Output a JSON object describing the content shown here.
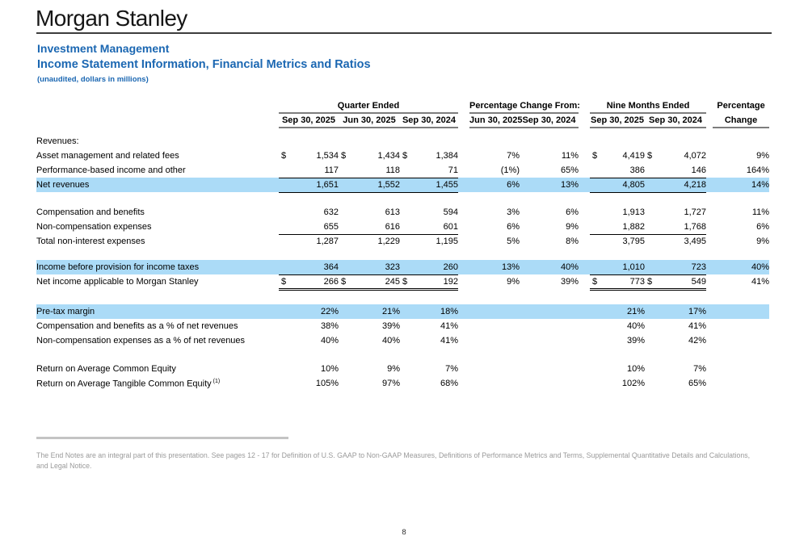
{
  "brand": {
    "logo": "Morgan Stanley"
  },
  "header": {
    "division": "Investment Management",
    "title": "Income Statement Information, Financial Metrics and Ratios",
    "subtitle": "(unaudited, dollars in millions)"
  },
  "colors": {
    "highlight_blue": "#abdbf7",
    "heading_blue": "#1b67b2",
    "footnote_gray": "#9a9a9a"
  },
  "table": {
    "groups": [
      {
        "label": "Quarter Ended",
        "span": 3
      },
      {
        "label": "Percentage Change From:",
        "span": 2
      },
      {
        "label": "Nine Months Ended",
        "span": 2
      },
      {
        "label": "Percentage",
        "span": 1
      }
    ],
    "columns": [
      "Sep 30, 2025",
      "Jun 30, 2025",
      "Sep 30, 2024",
      "Jun 30, 2025",
      "Sep 30, 2024",
      "Sep 30, 2025",
      "Sep 30, 2024",
      "Change"
    ],
    "rows": [
      {
        "spacer": 8
      },
      {
        "label": "Revenues:",
        "indent": 0
      },
      {
        "label": "Asset management and related fees",
        "indent": 1,
        "dollars": true,
        "values": [
          "1,534",
          "1,434",
          "1,384",
          "7%",
          "11%",
          "4,419",
          "4,072",
          "9%"
        ]
      },
      {
        "label": "Performance-based income and other",
        "indent": 1,
        "rule": "bb",
        "values": [
          "117",
          "118",
          "71",
          "(1%)",
          "65%",
          "386",
          "146",
          "164%"
        ]
      },
      {
        "label": "Net revenues",
        "indent": 2,
        "highlight": true,
        "rule": "bb",
        "values": [
          "1,651",
          "1,552",
          "1,455",
          "6%",
          "13%",
          "4,805",
          "4,218",
          "14%"
        ]
      },
      {
        "spacer": 16
      },
      {
        "label": "Compensation and benefits",
        "indent": 1,
        "values": [
          "632",
          "613",
          "594",
          "3%",
          "6%",
          "1,913",
          "1,727",
          "11%"
        ]
      },
      {
        "label": "Non-compensation expenses",
        "indent": 1,
        "rule": "bb",
        "values": [
          "655",
          "616",
          "601",
          "6%",
          "9%",
          "1,882",
          "1,768",
          "6%"
        ]
      },
      {
        "label": "Total non-interest expenses",
        "indent": 2,
        "values": [
          "1,287",
          "1,229",
          "1,195",
          "5%",
          "8%",
          "3,795",
          "3,495",
          "9%"
        ]
      },
      {
        "spacer": 14
      },
      {
        "label": "Income before provision for income taxes",
        "indent": 0,
        "highlight": true,
        "values": [
          "364",
          "323",
          "260",
          "13%",
          "40%",
          "1,010",
          "723",
          "40%"
        ]
      },
      {
        "label": "Net income applicable to Morgan Stanley",
        "indent": 0,
        "dollars": true,
        "rule": "tdbl",
        "values": [
          "266",
          "245",
          "192",
          "9%",
          "39%",
          "773",
          "549",
          "41%"
        ]
      },
      {
        "spacer": 19
      },
      {
        "label": "Pre-tax margin",
        "indent": 0,
        "highlight": true,
        "values": [
          "22%",
          "21%",
          "18%",
          "",
          "",
          "21%",
          "17%",
          ""
        ]
      },
      {
        "label": "Compensation and benefits as a % of net revenues",
        "indent": 0,
        "values": [
          "38%",
          "39%",
          "41%",
          "",
          "",
          "40%",
          "41%",
          ""
        ]
      },
      {
        "label": "Non-compensation expenses as a % of net revenues",
        "indent": 0,
        "values": [
          "40%",
          "40%",
          "41%",
          "",
          "",
          "39%",
          "42%",
          ""
        ]
      },
      {
        "spacer": 17
      },
      {
        "label": "Return on Average Common Equity",
        "indent": 0,
        "values": [
          "10%",
          "9%",
          "7%",
          "",
          "",
          "10%",
          "7%",
          ""
        ]
      },
      {
        "label": "Return on Average Tangible Common Equity",
        "sup": "(1)",
        "indent": 0,
        "values": [
          "105%",
          "97%",
          "68%",
          "",
          "",
          "102%",
          "65%",
          ""
        ]
      }
    ]
  },
  "footnote": "The End Notes are an integral part of this presentation.  See pages 12 - 17 for Definition of U.S. GAAP to Non-GAAP Measures, Definitions of Performance Metrics and Terms, Supplemental Quantitative Details and Calculations, and Legal Notice.",
  "page_number": "8"
}
